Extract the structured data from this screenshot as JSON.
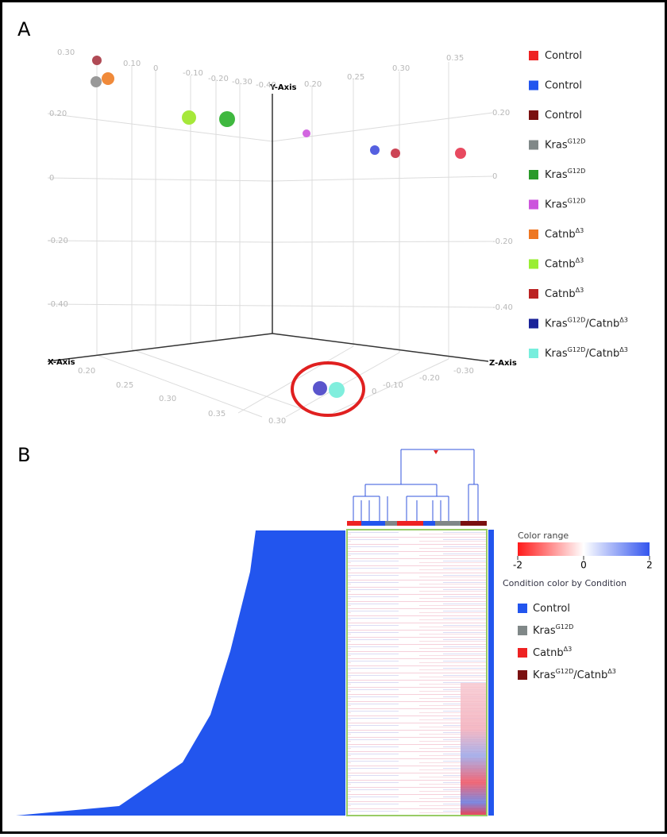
{
  "panel_a": {
    "label": "A",
    "axis_labels": {
      "x": "X-Axis",
      "y": "Y-Axis",
      "z": "Z-Axis"
    },
    "ticks": [
      "0.30",
      "0.10",
      "0",
      "-0.10",
      "-0.20",
      "-0.30",
      "-0.40",
      "0.20",
      "0.25",
      "0.30",
      "0.35",
      "0.20",
      "0",
      "-0.20",
      "-0.40",
      "0.20",
      "0",
      "-0.20",
      "-0.40",
      "0.20",
      "0.25",
      "0.30",
      "0.35",
      "0.30",
      "0",
      "-0.10",
      "-0.20",
      "-0.30"
    ],
    "legend": [
      {
        "label": [
          "Control"
        ],
        "color": "#ee2222"
      },
      {
        "label": [
          "Control"
        ],
        "color": "#2255ee"
      },
      {
        "label": [
          "Control"
        ],
        "color": "#7a1010"
      },
      {
        "label": [
          "Kras",
          "G12D"
        ],
        "color": "#808888"
      },
      {
        "label": [
          "Kras",
          "G12D"
        ],
        "color": "#2a9a2a"
      },
      {
        "label": [
          "Kras",
          "G12D"
        ],
        "color": "#cc55dd"
      },
      {
        "label": [
          "Catnb",
          "Δ3"
        ],
        "color": "#ee7722"
      },
      {
        "label": [
          "Catnb",
          "Δ3"
        ],
        "color": "#99ee33"
      },
      {
        "label": [
          "Catnb",
          "Δ3"
        ],
        "color": "#bb2222"
      },
      {
        "label": [
          "Kras",
          "G12D",
          "/Catnb",
          "Δ3"
        ],
        "color": "#1a2299"
      },
      {
        "label": [
          "Kras",
          "G12D",
          "/Catnb",
          "Δ3"
        ],
        "color": "#77eedd"
      }
    ]
  },
  "panel_b": {
    "label": "B",
    "color_range": {
      "title": "Color range",
      "ticks": [
        -2,
        0,
        2
      ],
      "lim": [
        -2,
        2
      ]
    },
    "legend_title": "Condition color by Condition",
    "legend": [
      {
        "label": [
          "Control"
        ],
        "color": "#2255ee"
      },
      {
        "label": [
          "Kras",
          "G12D"
        ],
        "color": "#808888"
      },
      {
        "label": [
          "Catnb",
          "Δ3"
        ],
        "color": "#ee2222"
      },
      {
        "label": [
          "Kras",
          "G12D",
          "/Catnb",
          "Δ3"
        ],
        "color": "#7a1010"
      }
    ]
  }
}
